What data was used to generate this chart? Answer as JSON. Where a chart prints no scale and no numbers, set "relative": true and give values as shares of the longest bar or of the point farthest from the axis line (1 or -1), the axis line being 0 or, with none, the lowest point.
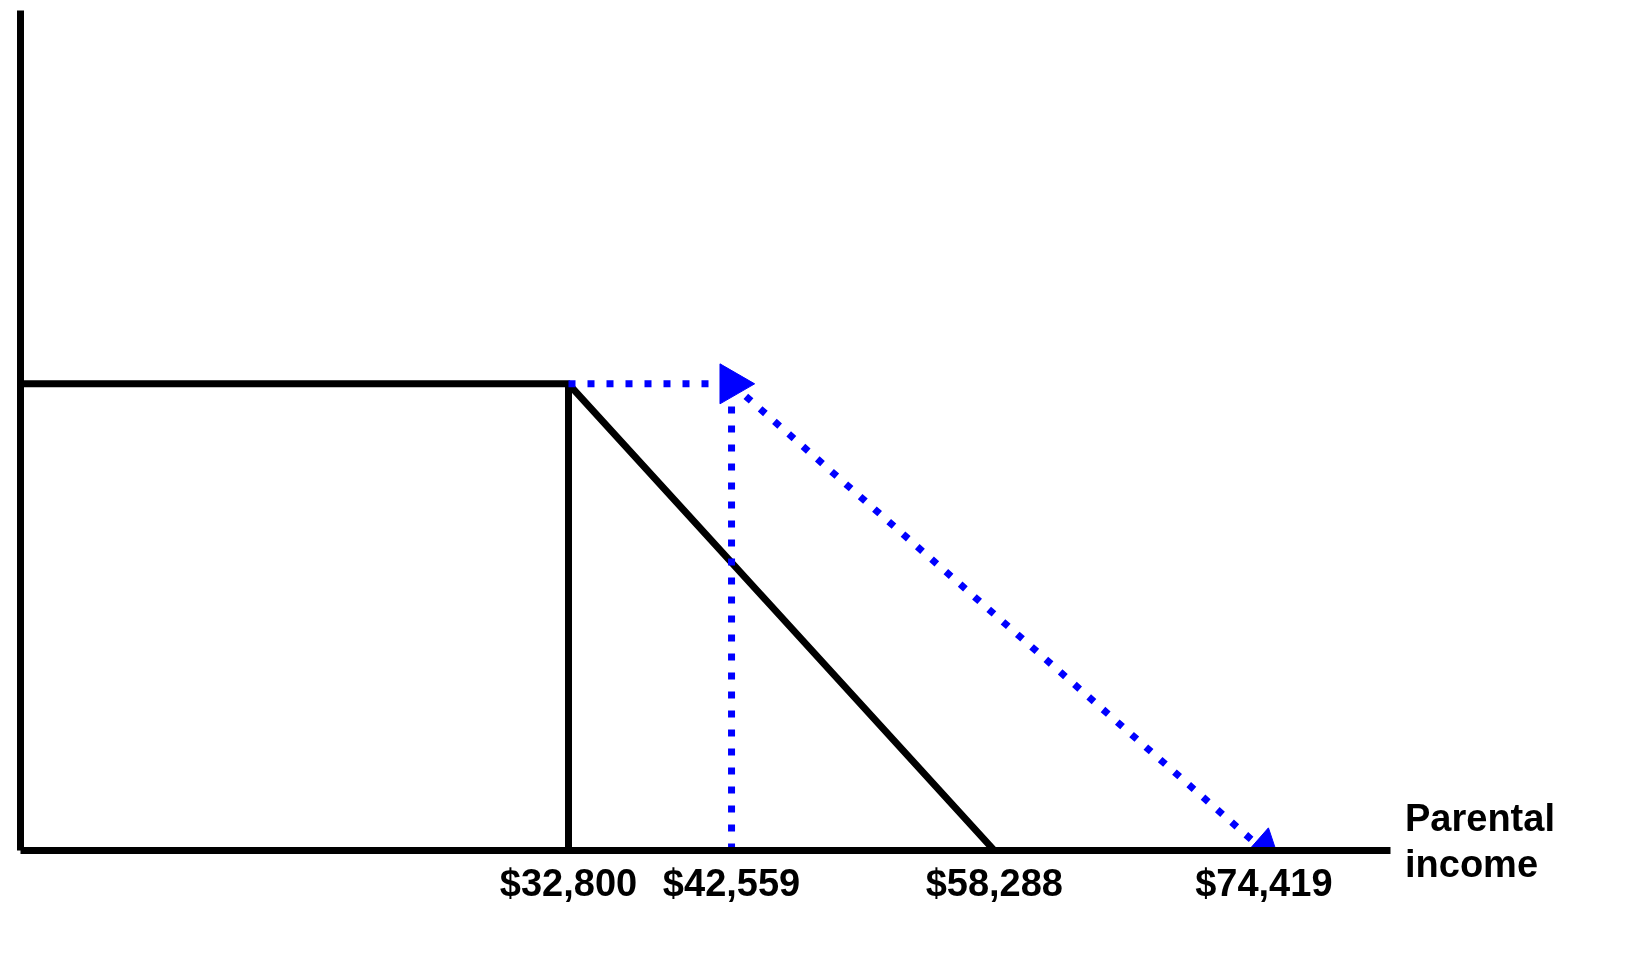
{
  "chart_data": {
    "type": "line",
    "xlabel": "Parental income",
    "relative": true,
    "xlim": [
      0,
      82000
    ],
    "xticks": [
      {
        "value": 32800,
        "label": "$32,800"
      },
      {
        "value": 42559,
        "label": "$42,559"
      },
      {
        "value": 58288,
        "label": "$58,288"
      },
      {
        "value": 74419,
        "label": "$74,419"
      }
    ],
    "grid": false,
    "series": [
      {
        "x": [
          0,
          32800,
          58288
        ],
        "values": [
          1,
          1,
          0
        ],
        "color": "#000000",
        "line_style": "solid"
      },
      {
        "x": [
          32800,
          32800
        ],
        "values": [
          0,
          1
        ],
        "color": "#000000",
        "line_style": "solid"
      },
      {
        "x": [
          32800,
          42559
        ],
        "values": [
          1,
          1
        ],
        "color": "#0000ff",
        "line_style": "dotted",
        "marker": "triangle"
      },
      {
        "x": [
          42559,
          42559
        ],
        "values": [
          0,
          1
        ],
        "color": "#0000ff",
        "line_style": "dotted"
      },
      {
        "x": [
          42559,
          74419
        ],
        "values": [
          1,
          0
        ],
        "color": "#0000ff",
        "line_style": "dotted",
        "marker": "triangle"
      }
    ]
  }
}
